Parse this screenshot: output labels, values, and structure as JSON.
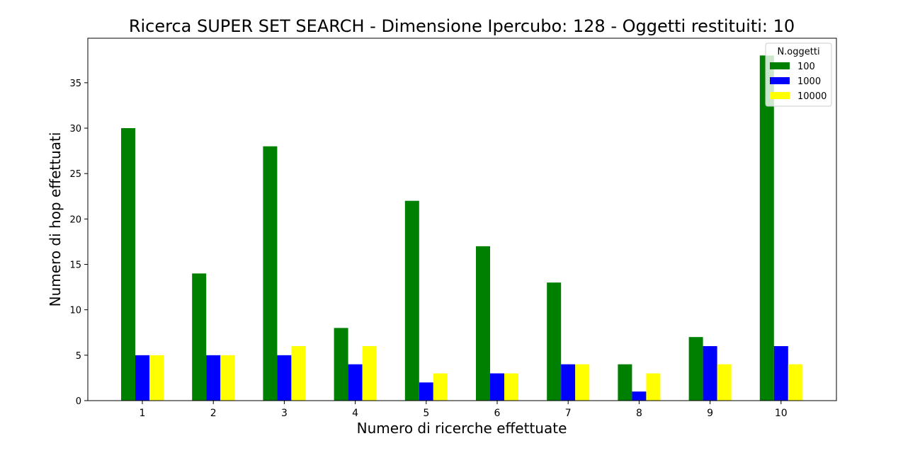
{
  "chart_data": {
    "type": "bar",
    "title": "Ricerca SUPER SET SEARCH - Dimensione Ipercubo: 128 - Oggetti restituiti: 10",
    "xlabel": "Numero di ricerche effettuate",
    "ylabel": "Numero di hop effettuati",
    "categories": [
      "1",
      "2",
      "3",
      "4",
      "5",
      "6",
      "7",
      "8",
      "9",
      "10"
    ],
    "series": [
      {
        "name": "100",
        "color": "#008000",
        "values": [
          30,
          14,
          28,
          8,
          22,
          17,
          13,
          4,
          7,
          38
        ]
      },
      {
        "name": "1000",
        "color": "#0000ff",
        "values": [
          5,
          5,
          5,
          4,
          2,
          3,
          4,
          1,
          6,
          6
        ]
      },
      {
        "name": "10000",
        "color": "#ffff00",
        "values": [
          5,
          5,
          6,
          6,
          3,
          3,
          4,
          3,
          4,
          4
        ]
      }
    ],
    "ylim": [
      0,
      39.9
    ],
    "yticks": [
      0,
      5,
      10,
      15,
      20,
      25,
      30,
      35
    ],
    "grid": false,
    "legend": {
      "title": "N.oggetti",
      "position": "top-right"
    }
  }
}
